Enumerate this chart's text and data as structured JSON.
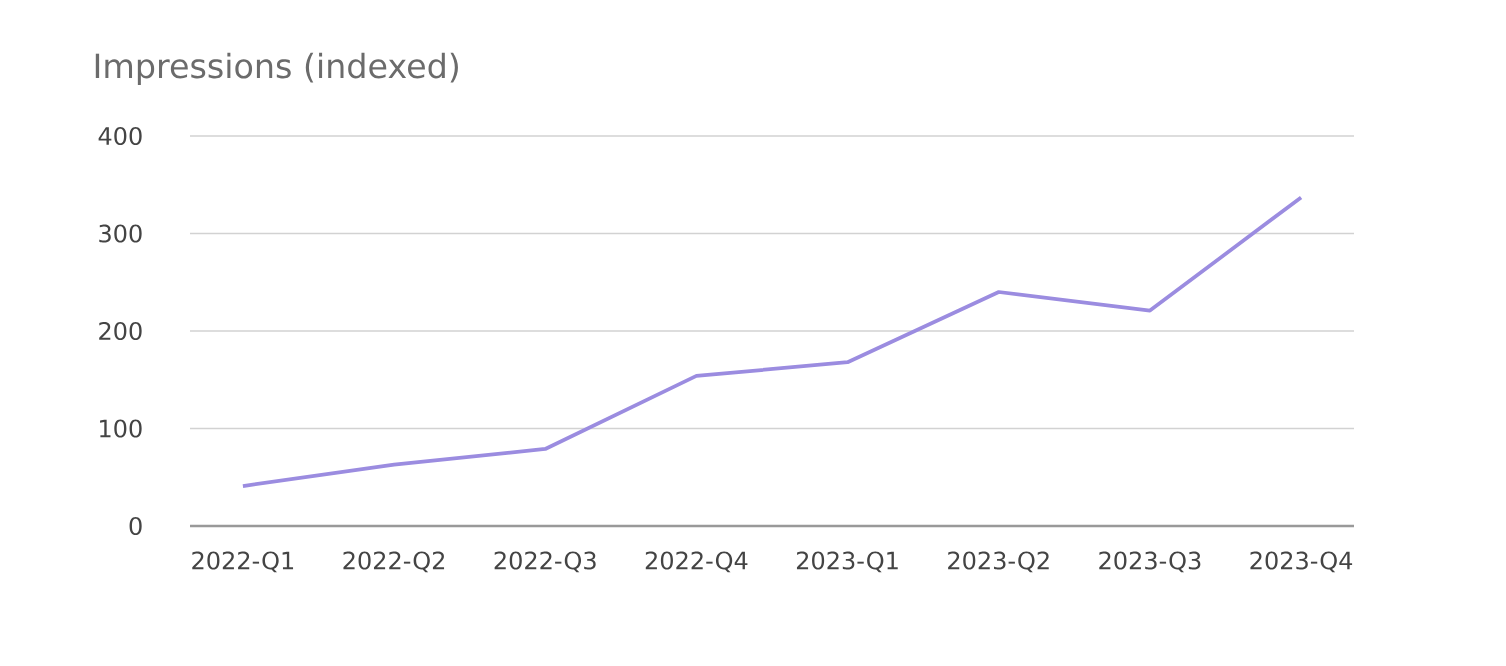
{
  "chart_data": {
    "type": "line",
    "title": "Impressions (indexed)",
    "categories": [
      "2022-Q1",
      "2022-Q2",
      "2022-Q3",
      "2022-Q4",
      "2023-Q1",
      "2023-Q2",
      "2023-Q3",
      "2023-Q4"
    ],
    "series": [
      {
        "color": "#9b8ce0",
        "values": [
          41,
          63,
          79,
          154,
          168,
          240,
          221,
          337
        ]
      }
    ],
    "ylim": [
      0,
      400
    ],
    "yticks": [
      0,
      100,
      200,
      300,
      400
    ],
    "grid": "y",
    "marker": "none",
    "line_style": "solid"
  }
}
